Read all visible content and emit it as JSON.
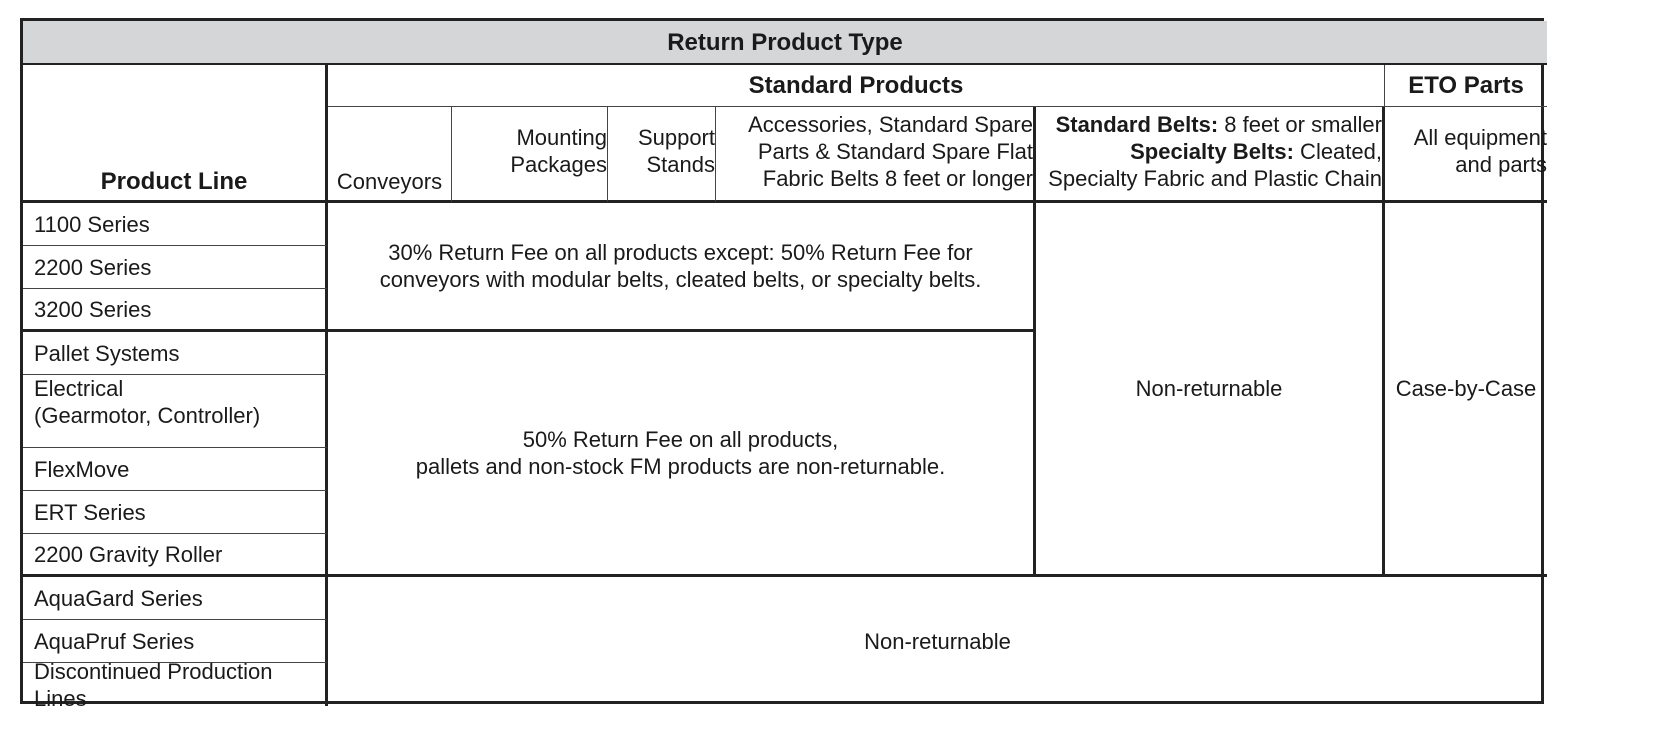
{
  "title": "Return Product Type",
  "product_line_header": "Product Line",
  "standard_products_header": "Standard Products",
  "eto_header": "ETO Parts",
  "subheaders": {
    "conveyors": "Conveyors",
    "mounting_line1": "Mounting",
    "mounting_line2": "Packages",
    "support_line1": "Support",
    "support_line2": "Stands",
    "accessories_line1": "Accessories,  Standard Spare",
    "accessories_line2": "Parts & Standard Spare Flat",
    "accessories_line3": "Fabric Belts 8 feet or longer",
    "standard_belts_label": "Standard Belts:",
    "standard_belts_text": " 8 feet or smaller",
    "specialty_belts_label": "Specialty Belts:",
    "specialty_belts_text": " Cleated,",
    "specialty_line3": "Specialty Fabric and Plastic Chain",
    "eto_line1": "All equipment",
    "eto_line2": "and parts"
  },
  "rows": [
    "1100 Series",
    "2200 Series",
    "3200 Series",
    "Pallet Systems",
    "Electrical",
    "(Gearmotor, Controller)",
    "FlexMove",
    "ERT Series",
    "2200 Gravity Roller",
    "AquaGard Series",
    "AquaPruf Series",
    "Discontinued Production Lines"
  ],
  "policies": {
    "group1_line1": "30% Return Fee on all products except:  50% Return Fee for",
    "group1_line2": "conveyors with modular belts, cleated belts, or specialty belts.",
    "group2_line1": "50% Return Fee on all products,",
    "group2_line2": "pallets and non-stock FM products are non-returnable.",
    "belts_policy": "Non-returnable",
    "eto_policy": "Case-by-Case",
    "group3_policy": "Non-returnable"
  }
}
